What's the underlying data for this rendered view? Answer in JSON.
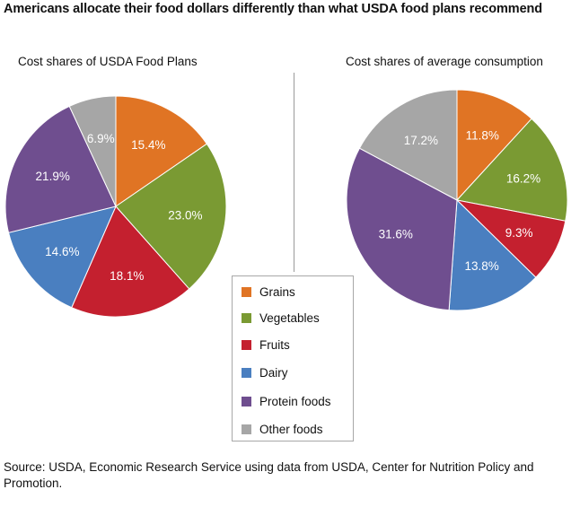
{
  "title": "Americans allocate their food dollars differently than what USDA food plans recommend",
  "source": "Source: USDA, Economic Research Service using data from USDA, Center for Nutrition Policy and Promotion.",
  "legend": {
    "items": [
      {
        "label": "Grains",
        "color": "#e07424"
      },
      {
        "label": "Vegetables",
        "color": "#7a9a33"
      },
      {
        "label": "Fruits",
        "color": "#c4202f"
      },
      {
        "label": "Dairy",
        "color": "#4a7fc0"
      },
      {
        "label": "Protein foods",
        "color": "#6f4e8f"
      },
      {
        "label": "Other foods",
        "color": "#a6a6a6"
      }
    ]
  },
  "chart_data": [
    {
      "type": "pie",
      "title": "Cost shares of USDA Food Plans",
      "categories": [
        "Grains",
        "Vegetables",
        "Fruits",
        "Dairy",
        "Protein foods",
        "Other foods"
      ],
      "values": [
        15.4,
        23.0,
        18.1,
        14.6,
        21.9,
        6.9
      ],
      "labels": [
        "15.4%",
        "23.0%",
        "18.1%",
        "14.6%",
        "21.9%",
        "6.9%"
      ],
      "label_colors": [
        "#ffffff",
        "#ffffff",
        "#ffffff",
        "#ffffff",
        "#ffffff",
        "#ffffff"
      ]
    },
    {
      "type": "pie",
      "title": "Cost shares of average consumption",
      "categories": [
        "Grains",
        "Vegetables",
        "Fruits",
        "Dairy",
        "Protein foods",
        "Other foods"
      ],
      "values": [
        11.8,
        16.2,
        9.3,
        13.8,
        31.6,
        17.2
      ],
      "labels": [
        "11.8%",
        "16.2%",
        "9.3%",
        "13.8%",
        "31.6%",
        "17.2%"
      ],
      "label_colors": [
        "#ffffff",
        "#ffffff",
        "#ffffff",
        "#ffffff",
        "#ffffff",
        "#ffffff"
      ]
    }
  ]
}
